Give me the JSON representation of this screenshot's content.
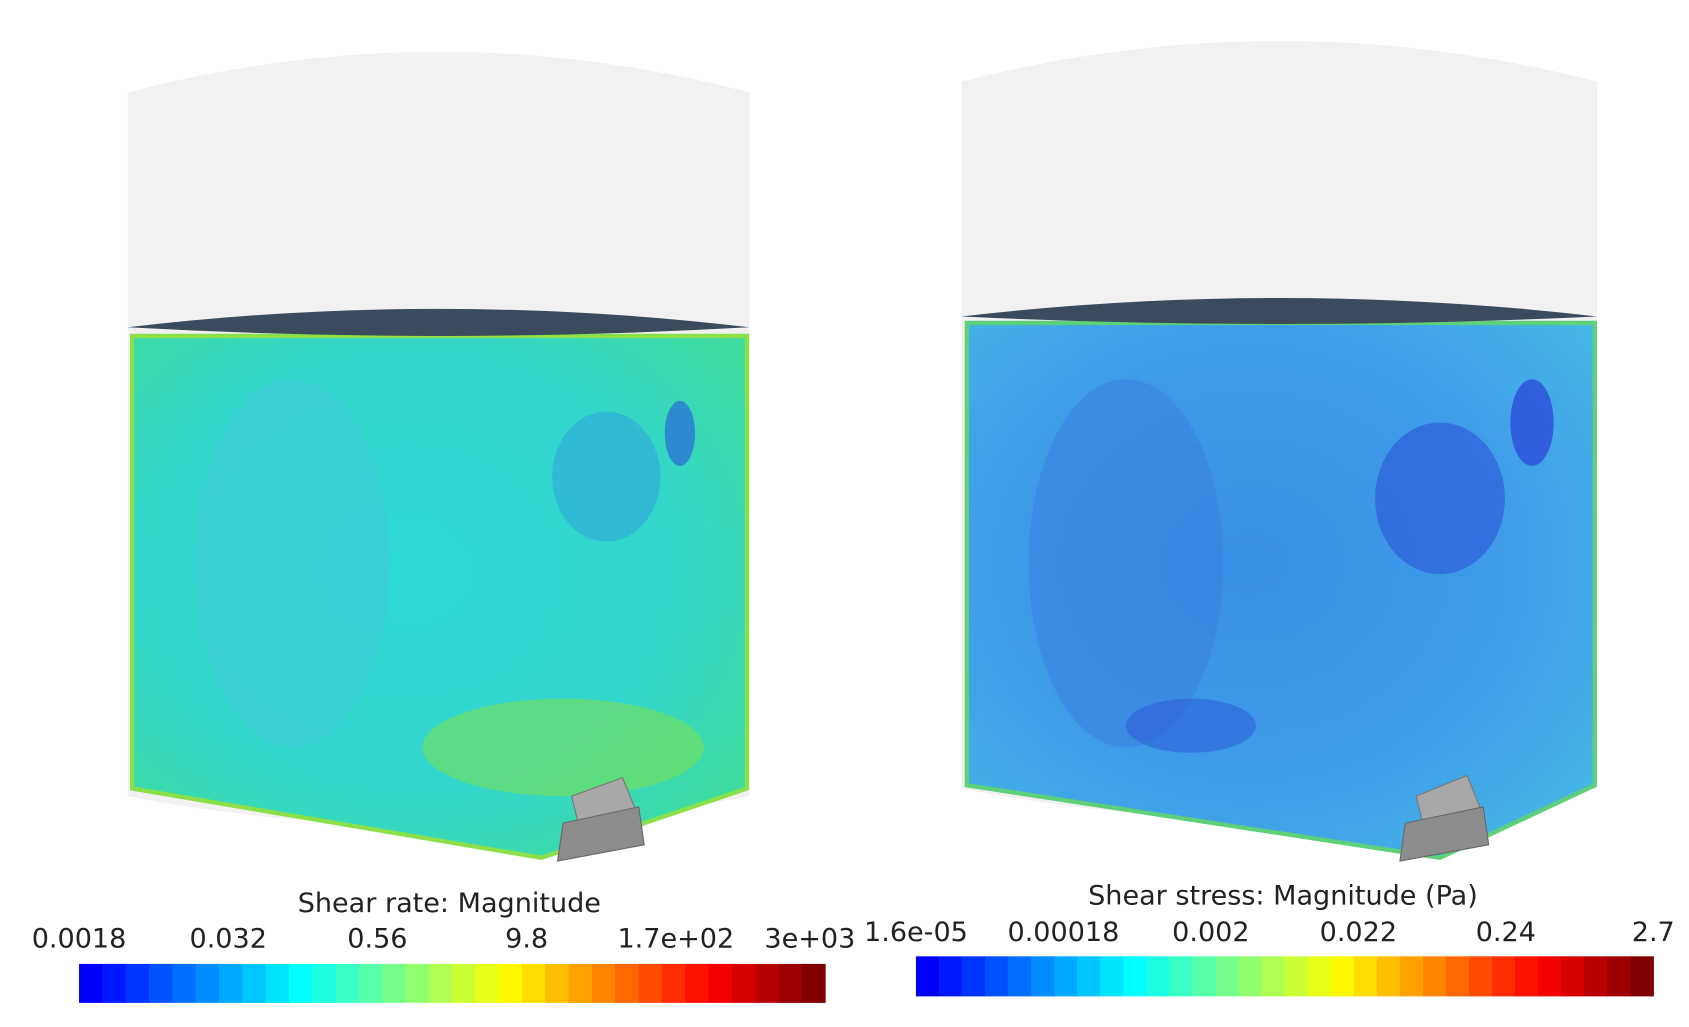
{
  "panels": [
    {
      "colorbar": {
        "title": "Shear rate: Magnitude",
        "tick_labels": [
          "0.0018",
          "0.032",
          "0.56",
          "9.8",
          "1.7e+02",
          "3e+03"
        ]
      }
    },
    {
      "colorbar": {
        "title": "Shear stress: Magnitude (Pa)",
        "tick_labels": [
          "1.6e-05",
          "0.00018",
          "0.002",
          "0.022",
          "0.24",
          "2.7"
        ]
      }
    }
  ]
}
